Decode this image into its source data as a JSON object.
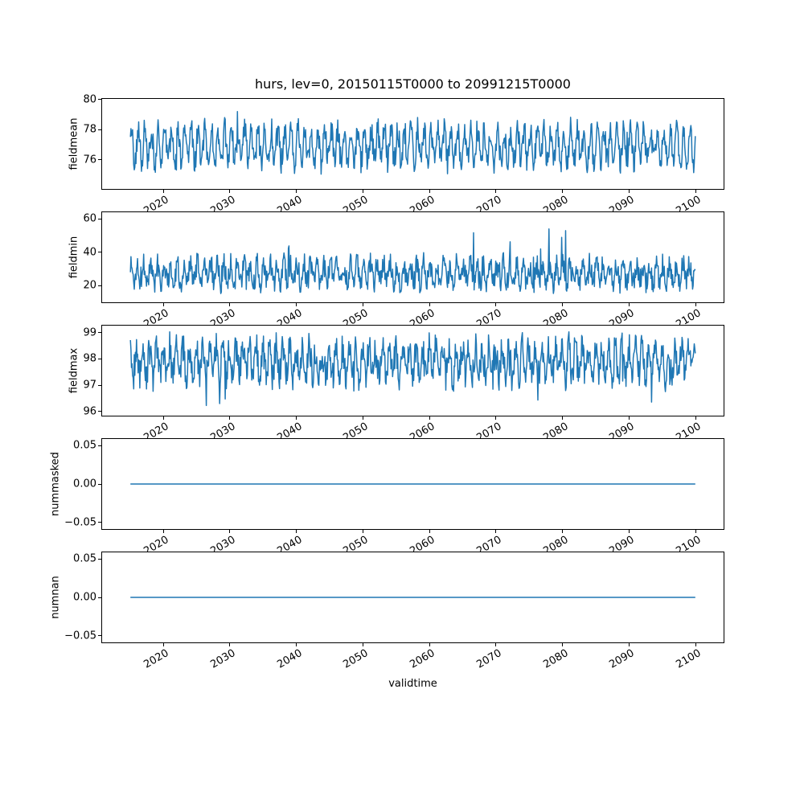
{
  "title": "hurs, lev=0, 20150115T0000 to 20991215T0000",
  "xlabel": "validtime",
  "line_color": "#1f77b4",
  "spine_color": "#000000",
  "background_color": "#ffffff",
  "x_axis": {
    "label": "validtime",
    "xlim": [
      2010.79,
      2104.21
    ],
    "tick_values": [
      2020,
      2030,
      2040,
      2050,
      2060,
      2070,
      2080,
      2090,
      2100
    ],
    "tick_labels": [
      "2020",
      "2030",
      "2040",
      "2050",
      "2060",
      "2070",
      "2080",
      "2090",
      "2100"
    ],
    "data_start": 2015.04,
    "data_end": 2099.96,
    "n_points": 1020,
    "cadence": "monthly"
  },
  "chart_data": [
    {
      "name": "fieldmean",
      "type": "line",
      "ylabel": "fieldmean",
      "ylim": [
        74.08,
        80.05
      ],
      "ytick_values": [
        76,
        78,
        80
      ],
      "ytick_labels": [
        "76",
        "78",
        "80"
      ],
      "approx_value_range": [
        74.5,
        79.8
      ],
      "approx_mean": 77.0,
      "series": {
        "kind": "synthetic-seasonal-noise",
        "seed": 42,
        "base": 76.95,
        "seasonal_amp": 1.05,
        "noise_amp": 0.85,
        "phase": 0.4,
        "clamp": [
          74.5,
          79.78
        ],
        "events": [
          {
            "prob": 0.004,
            "lo": 0.7,
            "hi": 1.5
          },
          {
            "prob": 0.004,
            "lo": -1.5,
            "hi": -0.7
          }
        ]
      }
    },
    {
      "name": "fieldmin",
      "type": "line",
      "ylabel": "fieldmin",
      "ylim": [
        10.0,
        63.9
      ],
      "ytick_values": [
        20,
        40,
        60
      ],
      "ytick_labels": [
        "20",
        "40",
        "60"
      ],
      "approx_value_range": [
        13,
        62
      ],
      "approx_mean": 28,
      "series": {
        "kind": "synthetic-seasonal-noise",
        "seed": 1337,
        "base": 27.5,
        "seasonal_amp": 5.5,
        "noise_amp": 7.0,
        "phase": 1.1,
        "clamp": [
          12.8,
          61.8
        ],
        "events": [
          {
            "prob": 0.012,
            "lo": 10,
            "hi": 26
          }
        ]
      }
    },
    {
      "name": "fieldmax",
      "type": "line",
      "ylabel": "fieldmax",
      "ylim": [
        95.84,
        99.27
      ],
      "ytick_values": [
        96,
        97,
        98,
        99
      ],
      "ytick_labels": [
        "96",
        "97",
        "98",
        "99"
      ],
      "approx_value_range": [
        95.7,
        99.1
      ],
      "approx_mean": 97.9,
      "series": {
        "kind": "synthetic-seasonal-noise",
        "seed": 2024,
        "base": 97.9,
        "seasonal_amp": 0.55,
        "noise_amp": 0.6,
        "phase": 2.2,
        "clamp": [
          95.72,
          99.12
        ],
        "events": [
          {
            "prob": 0.02,
            "lo": -0.9,
            "hi": -0.3
          },
          {
            "prob": 0.002,
            "lo": -1.9,
            "hi": -1.2
          }
        ]
      }
    },
    {
      "name": "nummasked",
      "type": "line",
      "ylabel": "nummasked",
      "ylim": [
        -0.0585,
        0.0585
      ],
      "ytick_values": [
        -0.05,
        0,
        0.05
      ],
      "ytick_labels": [
        "−0.05",
        "0.00",
        "0.05"
      ],
      "approx_value_range": [
        0,
        0
      ],
      "series": {
        "kind": "constant",
        "value": 0
      }
    },
    {
      "name": "numnan",
      "type": "line",
      "ylabel": "numnan",
      "ylim": [
        -0.0585,
        0.0585
      ],
      "ytick_values": [
        -0.05,
        0,
        0.05
      ],
      "ytick_labels": [
        "−0.05",
        "0.00",
        "0.05"
      ],
      "approx_value_range": [
        0,
        0
      ],
      "series": {
        "kind": "constant",
        "value": 0
      }
    }
  ]
}
